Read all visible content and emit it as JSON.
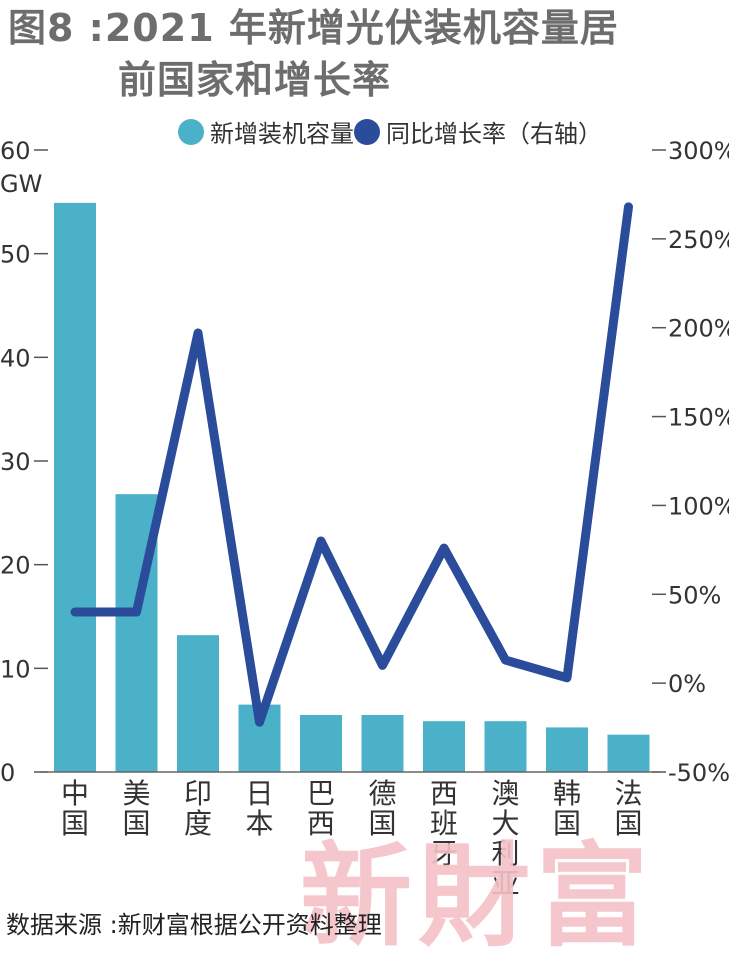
{
  "header": {
    "title_line1": "图8 :2021 年新增光伏装机容量居",
    "title_line2": "前国家和增长率"
  },
  "legend": {
    "bar_label": "新增装机容量",
    "line_label": "同比增长率（右轴）"
  },
  "footer": {
    "source": "数据来源 :新财富根据公开资料整理",
    "watermark": "新財富"
  },
  "colors": {
    "bar": "#4bb1c9",
    "line": "#2b4c9b"
  },
  "chart_data": {
    "type": "bar",
    "title": "图8 :2021 年新增光伏装机容量居前国家和增长率",
    "categories": [
      "中国",
      "美国",
      "印度",
      "日本",
      "巴西",
      "德国",
      "西班牙",
      "澳大利亚",
      "韩国",
      "法国"
    ],
    "series": [
      {
        "name": "新增装机容量",
        "type": "bar",
        "axis": "left",
        "values": [
          54.9,
          26.8,
          13.2,
          6.5,
          5.5,
          5.5,
          4.9,
          4.9,
          4.3,
          3.6
        ]
      },
      {
        "name": "同比增长率（右轴）",
        "type": "line",
        "axis": "right",
        "values": [
          40,
          40,
          197,
          -22,
          80,
          10,
          76,
          13,
          3,
          268
        ]
      }
    ],
    "y_left": {
      "unit": "GW",
      "min": 0,
      "max": 60,
      "ticks": [
        0,
        10,
        20,
        30,
        40,
        50,
        60
      ]
    },
    "y_right": {
      "min": -50,
      "max": 300,
      "ticks": [
        -50,
        0,
        50,
        100,
        150,
        200,
        250,
        300
      ],
      "tick_labels": [
        "-50%",
        "0%",
        "50%",
        "100%",
        "150%",
        "200%",
        "250%",
        "300%"
      ]
    },
    "grid": false,
    "legend_position": "top"
  }
}
